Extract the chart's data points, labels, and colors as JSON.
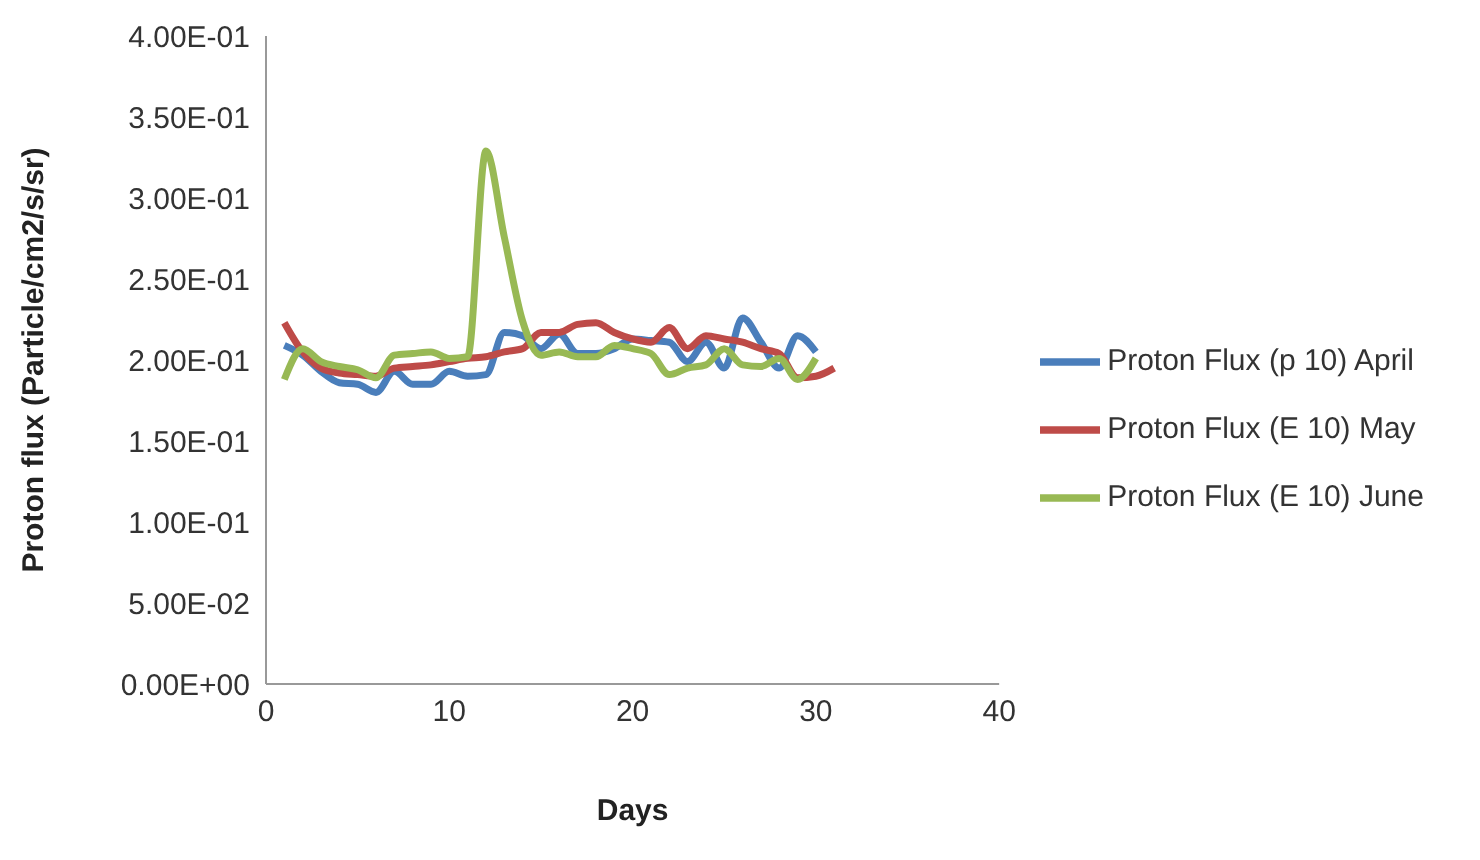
{
  "chart_data": {
    "type": "line",
    "xlabel": "Days",
    "ylabel": "Proton flux (Particle/cm2/s/sr)",
    "x": [
      1,
      2,
      3,
      4,
      5,
      6,
      7,
      8,
      9,
      10,
      11,
      12,
      13,
      14,
      15,
      16,
      17,
      18,
      19,
      20,
      21,
      22,
      23,
      24,
      25,
      26,
      27,
      28,
      29,
      30
    ],
    "series": [
      {
        "name": "Proton Flux (p 10) April",
        "color": "#4a7ebb",
        "values": [
          0.209,
          0.203,
          0.193,
          0.186,
          0.185,
          0.18,
          0.193,
          0.185,
          0.185,
          0.193,
          0.19,
          0.191,
          0.217,
          0.215,
          0.207,
          0.216,
          0.204,
          0.204,
          0.207,
          0.213,
          0.212,
          0.211,
          0.199,
          0.211,
          0.195,
          0.226,
          0.211,
          0.195,
          0.215,
          0.205
        ]
      },
      {
        "name": "Proton Flux (E 10) May",
        "color": "#be4b48",
        "x": [
          1,
          2,
          3,
          4,
          5,
          6,
          7,
          8,
          9,
          10,
          11,
          12,
          13,
          14,
          15,
          16,
          17,
          18,
          19,
          20,
          21,
          22,
          23,
          24,
          25,
          26,
          27,
          28,
          29,
          30,
          31
        ],
        "values": [
          0.223,
          0.205,
          0.195,
          0.192,
          0.191,
          0.19,
          0.195,
          0.196,
          0.197,
          0.199,
          0.201,
          0.202,
          0.205,
          0.207,
          0.217,
          0.217,
          0.222,
          0.223,
          0.217,
          0.213,
          0.211,
          0.22,
          0.207,
          0.215,
          0.213,
          0.211,
          0.207,
          0.204,
          0.189,
          0.19,
          0.195
        ]
      },
      {
        "name": "Proton Flux (E 10) June",
        "color": "#98b954",
        "values": [
          0.188,
          0.207,
          0.199,
          0.196,
          0.194,
          0.189,
          0.203,
          0.204,
          0.205,
          0.201,
          0.202,
          0.329,
          0.276,
          0.224,
          0.203,
          0.205,
          0.202,
          0.202,
          0.209,
          0.207,
          0.204,
          0.191,
          0.195,
          0.197,
          0.207,
          0.197,
          0.196,
          0.201,
          0.188,
          0.201
        ]
      }
    ],
    "xlim": [
      0,
      40
    ],
    "xticks": [
      0,
      10,
      20,
      30,
      40
    ],
    "ylim": [
      0,
      0.4
    ],
    "yticks": [
      {
        "value": 0,
        "label": "0.00E+00"
      },
      {
        "value": 0.05,
        "label": "5.00E-02"
      },
      {
        "value": 0.1,
        "label": "1.00E-01"
      },
      {
        "value": 0.15,
        "label": "1.50E-01"
      },
      {
        "value": 0.2,
        "label": "2.00E-01"
      },
      {
        "value": 0.25,
        "label": "2.50E-01"
      },
      {
        "value": 0.3,
        "label": "3.00E-01"
      },
      {
        "value": 0.35,
        "label": "3.50E-01"
      },
      {
        "value": 0.4,
        "label": "4.00E-01"
      }
    ],
    "grid": false,
    "legend": "right",
    "marker": "none",
    "line_style": "solid"
  }
}
